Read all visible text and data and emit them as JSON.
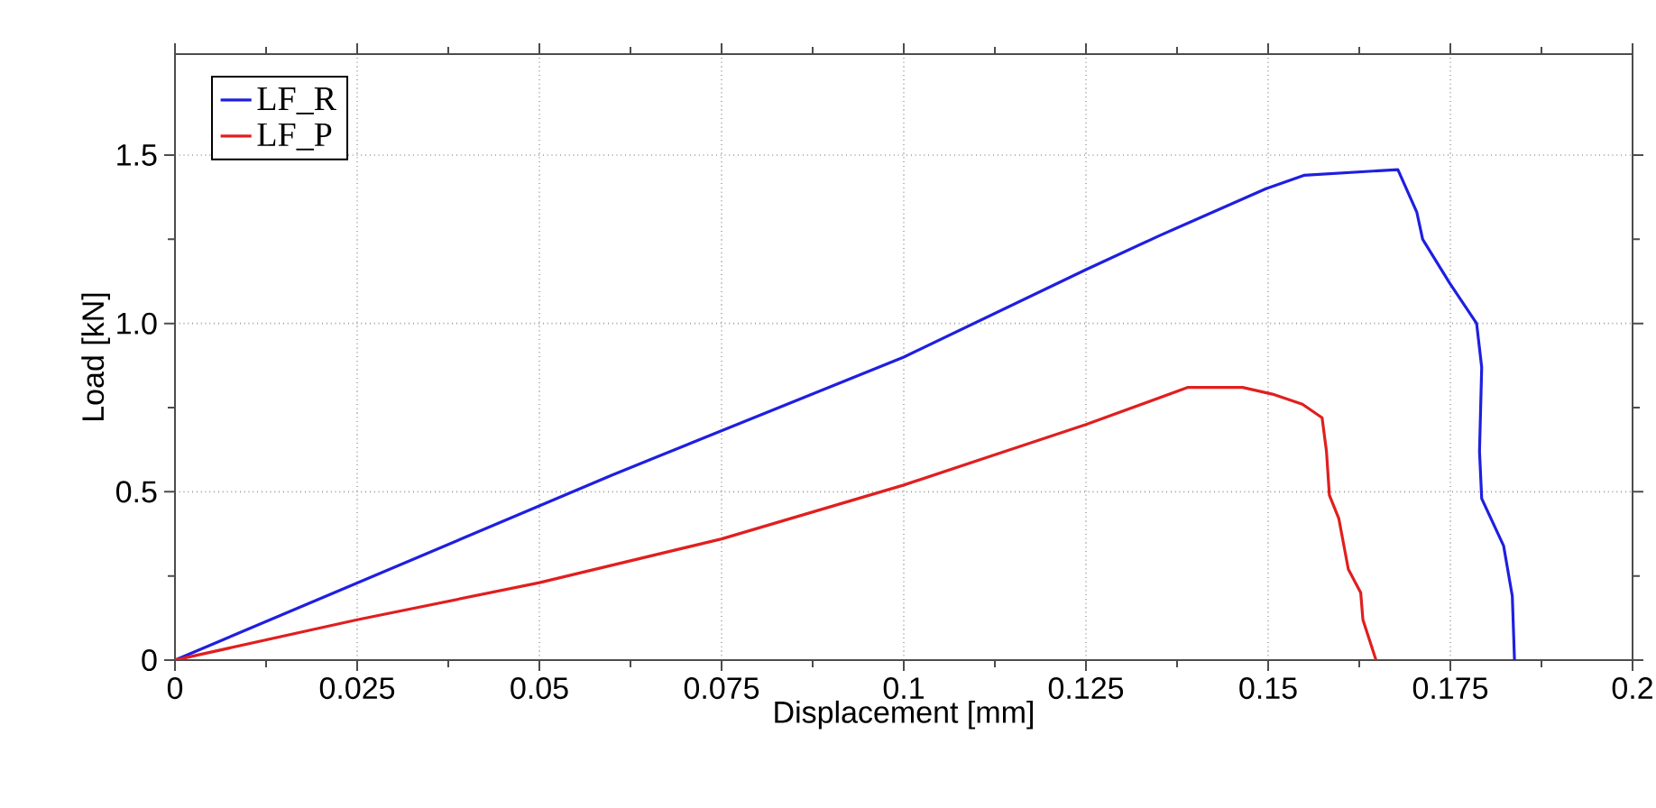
{
  "chart_data": {
    "type": "line",
    "xlabel": "Displacement [mm]",
    "ylabel": "Load [kN]",
    "xlim": [
      0,
      0.2
    ],
    "ylim": [
      0,
      1.8
    ],
    "xticks": [
      0,
      0.025,
      0.05,
      0.075,
      0.1,
      0.125,
      0.15,
      0.175,
      0.2
    ],
    "yticks": [
      {
        "value": 0,
        "label": "0"
      },
      {
        "value": 0.5,
        "label": "0.5"
      },
      {
        "value": 1.0,
        "label": "1.0"
      },
      {
        "value": 1.5,
        "label": "1.5"
      }
    ],
    "grid": true,
    "legend": "top left",
    "line_style": "solid",
    "series": [
      {
        "name": "LF_R",
        "color": "#1f1fe0",
        "x": [
          0,
          0.06,
          0.1,
          0.125,
          0.135,
          0.1497,
          0.1549,
          0.1678,
          0.1704,
          0.1712,
          0.1749,
          0.1786,
          0.1793,
          0.179,
          0.1793,
          0.1823,
          0.1835,
          0.1838
        ],
        "values": [
          0,
          0.55,
          0.9,
          1.16,
          1.26,
          1.4,
          1.44,
          1.457,
          1.33,
          1.25,
          1.12,
          1.0,
          0.87,
          0.62,
          0.48,
          0.34,
          0.19,
          0
        ]
      },
      {
        "name": "LF_P",
        "color": "#e01f1f",
        "x": [
          0,
          0.025,
          0.05,
          0.075,
          0.1,
          0.125,
          0.139,
          0.1465,
          0.1506,
          0.1547,
          0.1574,
          0.158,
          0.1584,
          0.1597,
          0.161,
          0.1627,
          0.163,
          0.1648
        ],
        "values": [
          0,
          0.12,
          0.23,
          0.36,
          0.52,
          0.7,
          0.81,
          0.81,
          0.79,
          0.76,
          0.72,
          0.62,
          0.49,
          0.42,
          0.27,
          0.2,
          0.12,
          0
        ]
      }
    ]
  }
}
